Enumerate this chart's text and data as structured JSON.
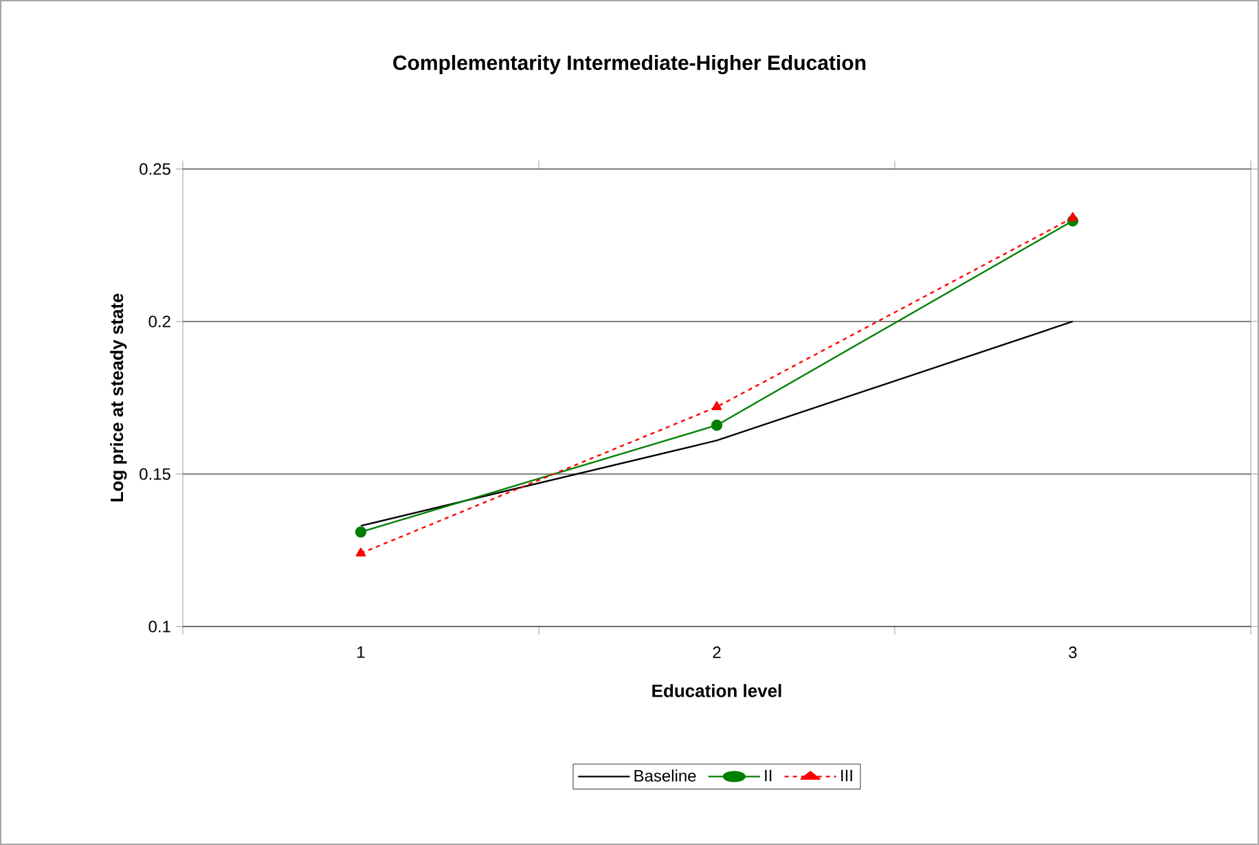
{
  "chart_data": {
    "type": "line",
    "title": "Complementarity Intermediate-Higher Education",
    "xlabel": "Education level",
    "ylabel": "Log price at steady state",
    "categories": [
      "1",
      "2",
      "3"
    ],
    "series": [
      {
        "name": "Baseline",
        "color": "#000000",
        "values": [
          0.133,
          0.161,
          0.2
        ],
        "marker": "none",
        "line_style": "solid"
      },
      {
        "name": "II",
        "color": "#008000",
        "values": [
          0.131,
          0.166,
          0.233
        ],
        "marker": "circle",
        "line_style": "solid"
      },
      {
        "name": "III",
        "color": "#ff0000",
        "values": [
          0.124,
          0.172,
          0.234
        ],
        "marker": "triangle",
        "line_style": "dashed"
      }
    ],
    "ylim": [
      0.1,
      0.25
    ],
    "yticks": [
      0.1,
      0.15,
      0.2,
      0.25
    ],
    "grid": "y",
    "legend": "bottom"
  }
}
